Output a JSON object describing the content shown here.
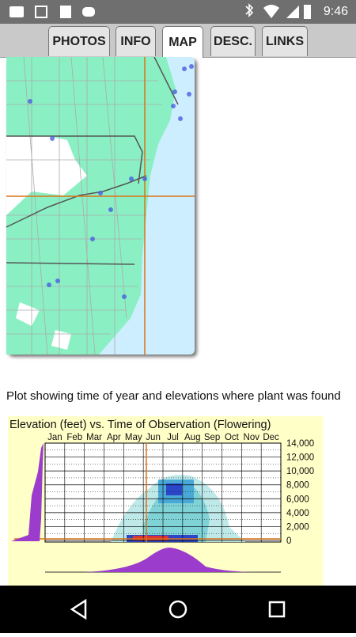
{
  "status_bar": {
    "time": "9:46"
  },
  "tabs": [
    "PHOTOS",
    "INFO",
    "MAP",
    "DESC.",
    "LINKS"
  ],
  "selected_tab_index": 2,
  "caption": "Plot showing time of year and elevations where plant was found",
  "chart": {
    "title": "Elevation (feet) vs. Time of Observation (Flowering)",
    "months": [
      "Jan",
      "Feb",
      "Mar",
      "Apr",
      "May",
      "Jun",
      "Jul",
      "Aug",
      "Sep",
      "Oct",
      "Nov",
      "Dec"
    ],
    "elevation_labels": [
      "14,000",
      "12,000",
      "10,000",
      "8,000",
      "6,000",
      "4,000",
      "2,000",
      "0"
    ]
  }
}
